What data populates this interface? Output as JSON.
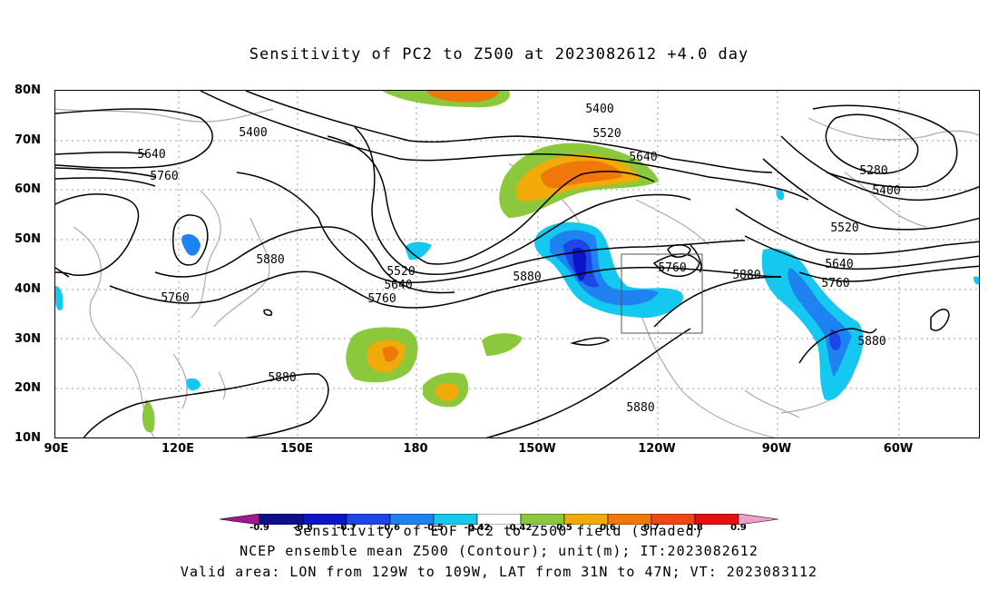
{
  "title": "Sensitivity of PC2 to Z500 at 2023082612 +4.0 day",
  "lat_labels": [
    "80N",
    "70N",
    "60N",
    "50N",
    "40N",
    "30N",
    "20N",
    "10N"
  ],
  "lon_labels": [
    "90E",
    "120E",
    "150E",
    "180",
    "150W",
    "120W",
    "90W",
    "60W"
  ],
  "contour_labels": [
    "5400",
    "5400",
    "5520",
    "5640",
    "5640",
    "5760",
    "5280",
    "5400",
    "5520",
    "5880",
    "5520",
    "5640",
    "5760",
    "5880",
    "5760",
    "5880",
    "5640",
    "5760",
    "5880",
    "5880",
    "5880",
    "5760"
  ],
  "colorbar": {
    "ticks": [
      "-0.9",
      "-0.8",
      "-0.7",
      "-0.6",
      "-0.5",
      "-0.42",
      "0.42",
      "0.5",
      "0.6",
      "0.7",
      "0.8",
      "0.9"
    ],
    "colors": [
      "#a01990",
      "#0f0f8c",
      "#0a14c8",
      "#1e46e6",
      "#1e82f0",
      "#14c8f0",
      "#ffffff",
      "#8cc83c",
      "#f0aa0a",
      "#f0780a",
      "#f04614",
      "#e60f0f",
      "#f0a0c8"
    ],
    "title": "Sensitivity of EOF PC2 to Z500 field (Shaded)"
  },
  "footer": {
    "line1": "NCEP ensemble mean Z500 (Contour); unit(m); IT:2023082612",
    "line2": "Valid area: LON from 129W to 109W, LAT from 31N to 47N; VT: 2023083112"
  },
  "valid_area": {
    "lon_min": -129,
    "lon_max": -109,
    "lat_min": 31,
    "lat_max": 47
  }
}
